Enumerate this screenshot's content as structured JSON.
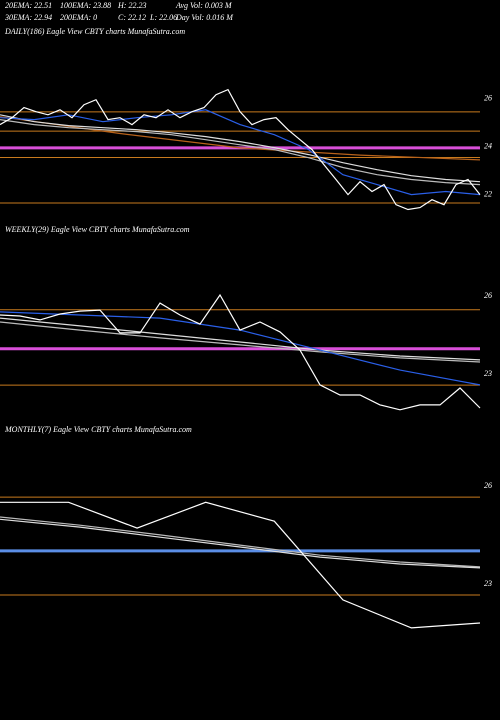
{
  "header": {
    "rows": [
      [
        "20EMA: 22.51",
        "100EMA: 23.88",
        "H: 22.23",
        "Avg Vol: 0.003  M"
      ],
      [
        "30EMA: 22.94",
        "200EMA: 0",
        "C: 22.12",
        "L: 22.06",
        "Day Vol: 0.016  M"
      ]
    ]
  },
  "chart_data": [
    {
      "type": "line",
      "title": "DAILY(186) Eagle   View  CBTY charts MunafaSutra.com",
      "ylim": [
        21.4,
        28.7
      ],
      "yticks": [
        26,
        24,
        22
      ],
      "levels": [
        {
          "value": 25.7,
          "color": "#c87a1e"
        },
        {
          "value": 24.9,
          "color": "#c87a1e"
        },
        {
          "value": 23.8,
          "color": "#c87a1e"
        },
        {
          "value": 21.9,
          "color": "#c87a1e"
        }
      ],
      "highlight": {
        "value": 24.2,
        "color": "#d94fd9"
      },
      "series": [
        {
          "color": "#b8621b",
          "values": [
            25.5,
            24.8,
            24.2,
            23.9,
            23.7
          ]
        },
        {
          "color": "#bbbbbb",
          "values": [
            25.38,
            25.17,
            25.04,
            24.96,
            24.88,
            24.75,
            24.54,
            24.33,
            24.13,
            23.79,
            23.38,
            23.08,
            22.88,
            22.75,
            22.67
          ]
        },
        {
          "color": "#dddddd",
          "values": [
            25.58,
            25.29,
            25.13,
            25.04,
            24.96,
            24.83,
            24.67,
            24.46,
            24.21,
            23.92,
            23.58,
            23.29,
            23.04,
            22.88,
            22.79
          ]
        },
        {
          "color": "#2a5fe8",
          "values": [
            25.46,
            25.38,
            25.58,
            25.29,
            25.46,
            25.58,
            25.79,
            25.17,
            24.75,
            24.13,
            23.08,
            22.67,
            22.25,
            22.38,
            22.25
          ]
        },
        {
          "color": "#ffffff",
          "values": [
            25.17,
            25.46,
            25.88,
            25.71,
            25.58,
            25.79,
            25.46,
            26,
            26.21,
            25.38,
            25.46,
            25.17,
            25.58,
            25.46,
            25.79,
            25.46,
            25.71,
            25.88,
            26.42,
            26.63,
            25.71,
            25.17,
            25.38,
            25.46,
            24.96,
            24.54,
            24.13,
            23.5,
            22.88,
            22.25,
            22.79,
            22.38,
            22.67,
            21.83,
            21.63,
            21.71,
            22.04,
            21.83,
            22.67,
            22.88,
            22.25
          ]
        }
      ]
    },
    {
      "type": "line",
      "title": "WEEKLY(29) Eagle   View  CBTY charts MunafaSutra.com",
      "ylim": [
        21.65,
        28.58
      ],
      "yticks": [
        26,
        23
      ],
      "levels": [
        {
          "value": 25.7,
          "color": "#c87a1e"
        },
        {
          "value": 22.8,
          "color": "#c87a1e"
        }
      ],
      "highlight": {
        "value": 24.2,
        "color": "#d94fd9"
      },
      "series": [
        {
          "color": "#bbbbbb",
          "values": [
            25.23,
            24.92,
            24.62,
            24.35,
            24.08,
            23.85,
            23.69
          ]
        },
        {
          "color": "#dddddd",
          "values": [
            25.38,
            25.08,
            24.77,
            24.46,
            24.15,
            23.92,
            23.77
          ]
        },
        {
          "color": "#2a5fe8",
          "values": [
            25.62,
            25.5,
            25.38,
            24.92,
            24.15,
            23.38,
            22.81
          ]
        },
        {
          "color": "#ffffff",
          "values": [
            25.5,
            25.46,
            25.31,
            25.54,
            25.65,
            25.69,
            24.81,
            24.81,
            25.96,
            25.5,
            25.15,
            26.27,
            24.92,
            25.23,
            24.85,
            24.15,
            22.81,
            22.42,
            22.42,
            22.04,
            21.85,
            22.04,
            22.04,
            22.69,
            21.92
          ]
        }
      ]
    },
    {
      "type": "line",
      "title": "MONTHLY(7) Eagle   View  CBTY charts MunafaSutra.com",
      "ylim": [
        21.47,
        27.6
      ],
      "yticks": [
        26,
        23
      ],
      "levels": [
        {
          "value": 25.85,
          "color": "#c87a1e"
        },
        {
          "value": 22.85,
          "color": "#c87a1e"
        }
      ],
      "highlight": {
        "value": 24.2,
        "color": "#5b8ee6"
      },
      "series": [
        {
          "color": "#bbbbbb",
          "values": [
            25.24,
            24.99,
            24.69,
            24.38,
            24.07,
            23.86,
            23.71
          ]
        },
        {
          "color": "#dddddd",
          "values": [
            25.17,
            24.93,
            24.62,
            24.32,
            24.01,
            23.8,
            23.68
          ]
        },
        {
          "color": "#ffffff",
          "values": [
            25.69,
            25.69,
            24.9,
            25.69,
            25.11,
            22.7,
            21.84,
            21.99
          ]
        }
      ]
    }
  ]
}
